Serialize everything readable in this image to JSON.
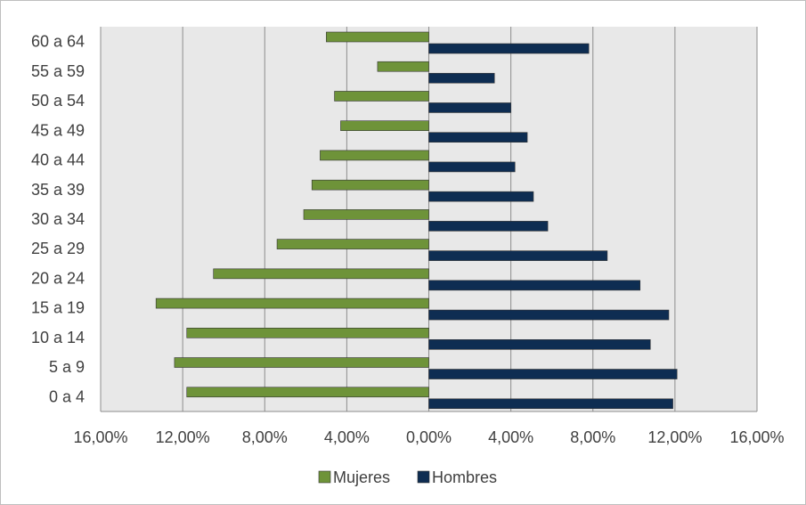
{
  "chart_data": {
    "type": "bar",
    "orientation": "horizontal",
    "categories": [
      "0 a 4",
      "5 a 9",
      "10 a 14",
      "15 a 19",
      "20 a 24",
      "25 a 29",
      "30 a 34",
      "35 a 39",
      "40 a 44",
      "45 a 49",
      "50 a 54",
      "55 a 59",
      "60 a 64"
    ],
    "series": [
      {
        "name": "Mujeres",
        "color": "#6e9339",
        "values": [
          -11.8,
          -12.4,
          -11.8,
          -13.3,
          -10.5,
          -7.4,
          -6.1,
          -5.7,
          -5.3,
          -4.3,
          -4.6,
          -2.5,
          -5.0
        ]
      },
      {
        "name": "Hombres",
        "color": "#0e2d52",
        "values": [
          11.9,
          12.1,
          10.8,
          11.7,
          10.3,
          8.7,
          5.8,
          5.1,
          4.2,
          4.8,
          4.0,
          3.2,
          7.8
        ]
      }
    ],
    "xlim": [
      -16,
      16
    ],
    "x_ticks": [
      -16,
      -12,
      -8,
      -4,
      0,
      4,
      8,
      12,
      16
    ],
    "x_tick_labels": [
      "16,00%",
      "12,00%",
      "8,00%",
      "4,00%",
      "0,00%",
      "4,00%",
      "8,00%",
      "12,00%",
      "16,00%"
    ],
    "grid": true,
    "plot_background": "#e8e8e8",
    "legend_position": "bottom",
    "title": "",
    "xlabel": "",
    "ylabel": ""
  }
}
